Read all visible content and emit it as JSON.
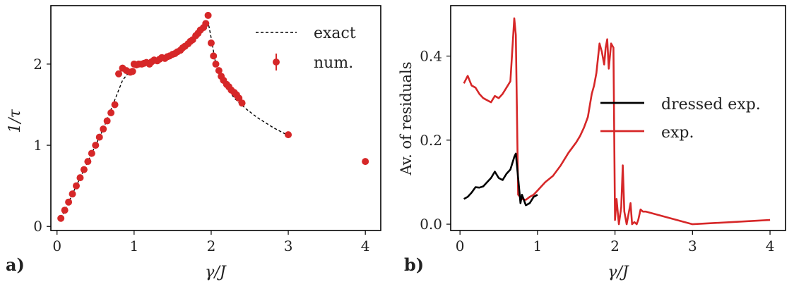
{
  "chart_data": [
    {
      "panel_label": "a)",
      "type": "scatter",
      "xlabel": "γ/J",
      "ylabel": "1/τ",
      "xlim": [
        -0.08,
        4.2
      ],
      "ylim": [
        -0.05,
        2.72
      ],
      "xticks": [
        0,
        1,
        2,
        3,
        4
      ],
      "yticks": [
        0,
        1,
        2
      ],
      "legend": {
        "position": "top-right",
        "entries": [
          "exact",
          "num."
        ]
      },
      "colors": {
        "exact": "#000000",
        "num": "#d62728"
      },
      "series": [
        {
          "name": "exact",
          "style": "dashed",
          "x": [
            0.05,
            0.3,
            0.6,
            0.85,
            0.95,
            1.0,
            1.2,
            1.4,
            1.6,
            1.8,
            1.97,
            2.0,
            2.05,
            2.1,
            2.2,
            2.3,
            2.45,
            2.6,
            2.8,
            3.0
          ],
          "y": [
            0.1,
            0.6,
            1.2,
            1.8,
            1.92,
            2.0,
            2.02,
            2.08,
            2.18,
            2.32,
            2.47,
            2.32,
            2.05,
            1.9,
            1.72,
            1.58,
            1.45,
            1.34,
            1.22,
            1.12
          ]
        },
        {
          "name": "num.",
          "style": "markers",
          "x": [
            0.05,
            0.1,
            0.15,
            0.2,
            0.25,
            0.3,
            0.35,
            0.4,
            0.45,
            0.5,
            0.55,
            0.6,
            0.65,
            0.7,
            0.75,
            0.8,
            0.85,
            0.9,
            0.95,
            0.98,
            1.0,
            1.03,
            1.06,
            1.1,
            1.13,
            1.16,
            1.2,
            1.23,
            1.26,
            1.3,
            1.33,
            1.36,
            1.4,
            1.43,
            1.46,
            1.5,
            1.53,
            1.56,
            1.6,
            1.63,
            1.66,
            1.7,
            1.73,
            1.76,
            1.8,
            1.83,
            1.86,
            1.9,
            1.93,
            1.96,
            2.0,
            2.03,
            2.06,
            2.1,
            2.13,
            2.16,
            2.2,
            2.23,
            2.26,
            2.3,
            2.33,
            2.36,
            2.4,
            3.0,
            4.0
          ],
          "y": [
            0.1,
            0.2,
            0.3,
            0.4,
            0.5,
            0.6,
            0.7,
            0.8,
            0.9,
            1.0,
            1.1,
            1.2,
            1.3,
            1.4,
            1.5,
            1.88,
            1.95,
            1.92,
            1.9,
            1.91,
            2.0,
            1.99,
            2.0,
            2.0,
            2.01,
            2.02,
            2.0,
            2.03,
            2.05,
            2.04,
            2.06,
            2.08,
            2.07,
            2.09,
            2.1,
            2.12,
            2.13,
            2.15,
            2.17,
            2.2,
            2.22,
            2.25,
            2.28,
            2.3,
            2.35,
            2.38,
            2.42,
            2.45,
            2.5,
            2.6,
            2.26,
            2.1,
            2.0,
            1.92,
            1.85,
            1.8,
            1.75,
            1.72,
            1.68,
            1.65,
            1.62,
            1.58,
            1.52,
            1.13,
            0.8
          ]
        }
      ]
    },
    {
      "panel_label": "b)",
      "type": "line",
      "xlabel": "γ/J",
      "ylabel": "Av. of residuals",
      "xlim": [
        -0.12,
        4.2
      ],
      "ylim": [
        -0.015,
        0.52
      ],
      "xticks": [
        0,
        1,
        2,
        3,
        4
      ],
      "yticks": [
        0.0,
        0.2,
        0.4
      ],
      "ytick_labels": [
        "0.0",
        "0.2",
        "0.4"
      ],
      "legend": {
        "position": "center-right",
        "entries": [
          "dressed exp.",
          "exp."
        ]
      },
      "colors": {
        "dressed exp.": "#000000",
        "exp.": "#d62728"
      },
      "series": [
        {
          "name": "dressed exp.",
          "x": [
            0.05,
            0.1,
            0.15,
            0.2,
            0.25,
            0.3,
            0.35,
            0.4,
            0.45,
            0.5,
            0.55,
            0.6,
            0.65,
            0.7,
            0.72,
            0.75,
            0.78,
            0.8,
            0.85,
            0.9,
            0.95,
            1.0
          ],
          "y": [
            0.06,
            0.065,
            0.075,
            0.088,
            0.087,
            0.09,
            0.1,
            0.11,
            0.125,
            0.11,
            0.105,
            0.12,
            0.13,
            0.16,
            0.168,
            0.11,
            0.05,
            0.07,
            0.045,
            0.05,
            0.065,
            0.07
          ]
        },
        {
          "name": "exp.",
          "x": [
            0.05,
            0.1,
            0.15,
            0.2,
            0.25,
            0.3,
            0.35,
            0.4,
            0.45,
            0.5,
            0.55,
            0.6,
            0.65,
            0.7,
            0.72,
            0.75,
            0.8,
            0.85,
            0.9,
            0.95,
            1.0,
            1.1,
            1.2,
            1.3,
            1.4,
            1.5,
            1.55,
            1.6,
            1.65,
            1.7,
            1.73,
            1.76,
            1.8,
            1.83,
            1.86,
            1.88,
            1.9,
            1.92,
            1.95,
            1.98,
            2.0,
            2.02,
            2.05,
            2.08,
            2.1,
            2.12,
            2.15,
            2.18,
            2.2,
            2.22,
            2.25,
            2.28,
            2.3,
            2.33,
            2.36,
            2.4,
            3.0,
            4.0
          ],
          "y": [
            0.335,
            0.353,
            0.33,
            0.325,
            0.31,
            0.3,
            0.295,
            0.29,
            0.305,
            0.3,
            0.31,
            0.325,
            0.34,
            0.49,
            0.45,
            0.07,
            0.06,
            0.058,
            0.065,
            0.07,
            0.08,
            0.1,
            0.115,
            0.14,
            0.17,
            0.195,
            0.21,
            0.23,
            0.255,
            0.31,
            0.33,
            0.36,
            0.43,
            0.41,
            0.38,
            0.42,
            0.44,
            0.37,
            0.43,
            0.42,
            0.01,
            0.06,
            0.0,
            0.04,
            0.14,
            0.03,
            0.0,
            0.03,
            0.05,
            0.0,
            0.005,
            0.0,
            0.01,
            0.035,
            0.03,
            0.03,
            0.0,
            0.01
          ]
        }
      ]
    }
  ]
}
